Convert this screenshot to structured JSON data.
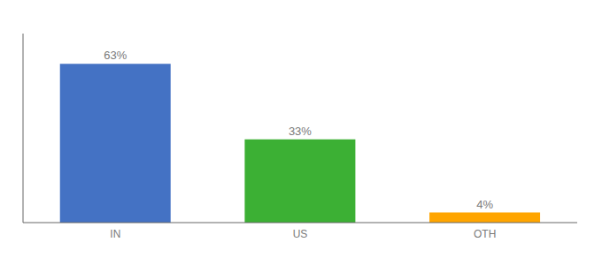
{
  "chart_data": {
    "type": "bar",
    "categories": [
      "IN",
      "US",
      "OTH"
    ],
    "values": [
      63,
      33,
      4
    ],
    "value_labels": [
      "63%",
      "33%",
      "4%"
    ],
    "colors": [
      "#4472C4",
      "#3CB034",
      "#FFA500"
    ],
    "ylim": [
      0,
      75
    ],
    "data_labels": true,
    "tick_labels": "x",
    "grid": false
  }
}
